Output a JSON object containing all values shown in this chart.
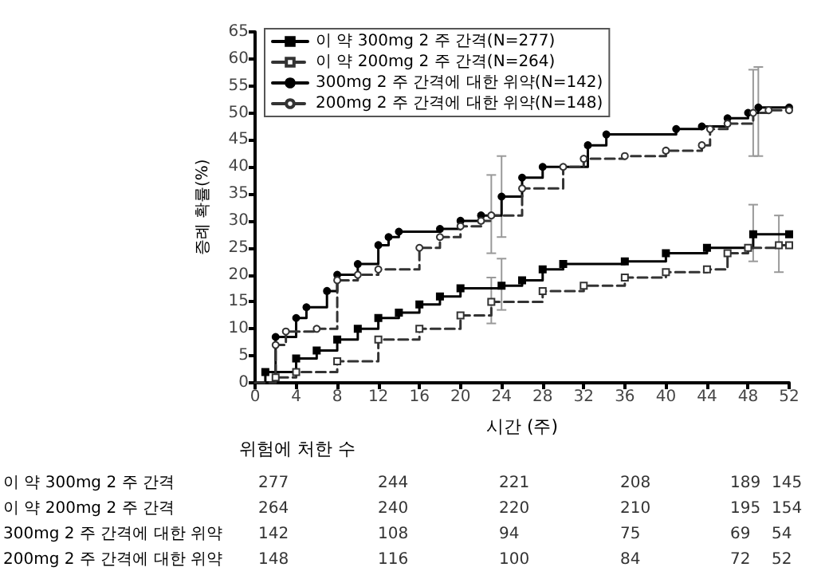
{
  "chart_data": {
    "type": "step",
    "xlabel": "시간 (주)",
    "ylabel": "증례 확률(%)",
    "xlim": [
      0,
      52
    ],
    "xticks": [
      0,
      4,
      8,
      12,
      16,
      20,
      24,
      28,
      32,
      36,
      40,
      44,
      48,
      52
    ],
    "ylim": [
      0,
      65
    ],
    "yticks": [
      0,
      5,
      10,
      15,
      20,
      25,
      30,
      35,
      40,
      45,
      50,
      55,
      60,
      65
    ],
    "grid": false,
    "legend": "top left",
    "series": [
      {
        "name": "이 약 300mg 2 주 간격(N=277)",
        "color": "#000000",
        "marker": "square",
        "line_style": "solid",
        "x": [
          0,
          1,
          4,
          6,
          8,
          10,
          12,
          14,
          16,
          18,
          20,
          24,
          26,
          28,
          30,
          36,
          40,
          44,
          48.5,
          52
        ],
        "values": [
          0,
          2,
          4.5,
          6,
          8,
          10,
          12,
          13,
          14.5,
          16,
          17.5,
          18,
          19,
          21,
          22,
          22.5,
          24,
          25,
          27.5,
          27.5
        ],
        "errors": [
          null,
          null,
          null,
          null,
          null,
          null,
          null,
          null,
          null,
          null,
          null,
          [
            13.5,
            23
          ],
          null,
          null,
          null,
          null,
          null,
          null,
          [
            22.5,
            33
          ],
          null
        ]
      },
      {
        "name": "이 약 200mg 2 주 간격(N=264)",
        "color": "#333333",
        "marker": "square",
        "line_style": "dashed",
        "x": [
          0,
          2,
          4,
          8,
          12,
          16,
          20,
          23,
          28,
          32,
          36,
          40,
          44,
          46,
          48,
          51,
          52
        ],
        "values": [
          0,
          1,
          2,
          4,
          8,
          10,
          12.5,
          15,
          17,
          18,
          19.5,
          20.5,
          21,
          24,
          25,
          25.5,
          25.5
        ],
        "errors": [
          null,
          null,
          null,
          null,
          null,
          null,
          null,
          [
            11,
            19.5
          ],
          null,
          null,
          null,
          null,
          null,
          null,
          null,
          [
            20.5,
            31
          ],
          null
        ]
      },
      {
        "name": "300mg 2 주 간격에 대한 위약(N=142)",
        "color": "#000000",
        "marker": "circle",
        "line_style": "solid",
        "x": [
          0,
          2,
          4,
          5,
          7,
          8,
          10,
          12,
          13,
          14,
          18,
          20,
          22,
          24,
          26,
          28,
          32.4,
          34.2,
          41,
          43.5,
          46,
          48,
          49,
          52
        ],
        "values": [
          0,
          8.5,
          12,
          14,
          17,
          20,
          22,
          25.5,
          27,
          28,
          28.5,
          30,
          31,
          34.5,
          38,
          40,
          44,
          46,
          47,
          47.5,
          49,
          50,
          51,
          51
        ],
        "errors": [
          null,
          null,
          null,
          null,
          null,
          null,
          null,
          null,
          null,
          null,
          null,
          null,
          null,
          [
            27,
            42
          ],
          null,
          null,
          null,
          null,
          null,
          null,
          null,
          null,
          [
            42,
            58.5
          ],
          null
        ]
      },
      {
        "name": "200mg 2 주 간격에 대한 위약(N=148)",
        "color": "#333333",
        "marker": "circle",
        "line_style": "dashed",
        "x": [
          0,
          2,
          3,
          6,
          8,
          10,
          12,
          16,
          18,
          20,
          22,
          23,
          26,
          30,
          32,
          36,
          40,
          43.5,
          44.3,
          46,
          48.5,
          50,
          52
        ],
        "values": [
          0,
          7,
          9.5,
          10,
          19,
          20,
          21,
          25,
          27,
          29,
          30,
          31,
          36,
          40,
          41.5,
          42,
          43,
          44,
          47,
          48,
          50,
          50.5,
          50.5
        ],
        "errors": [
          null,
          null,
          null,
          null,
          null,
          null,
          null,
          null,
          null,
          null,
          null,
          [
            24,
            38.5
          ],
          null,
          null,
          null,
          null,
          null,
          null,
          null,
          null,
          [
            42,
            58
          ],
          null,
          null
        ]
      }
    ],
    "annotations": [
      "위험에 처한 수",
      "이 약 300mg 2 주 간격",
      "277",
      "244",
      "221",
      "208",
      "189",
      "145",
      "이 약 200mg 2 주 간격",
      "264",
      "240",
      "220",
      "210",
      "195",
      "154",
      "300mg 2 주 간격에 대한 위약",
      "142",
      "108",
      "94",
      "75",
      "69",
      "54",
      "200mg 2 주 간격에 대한 위약",
      "148",
      "116",
      "100",
      "84",
      "72",
      "52"
    ]
  }
}
